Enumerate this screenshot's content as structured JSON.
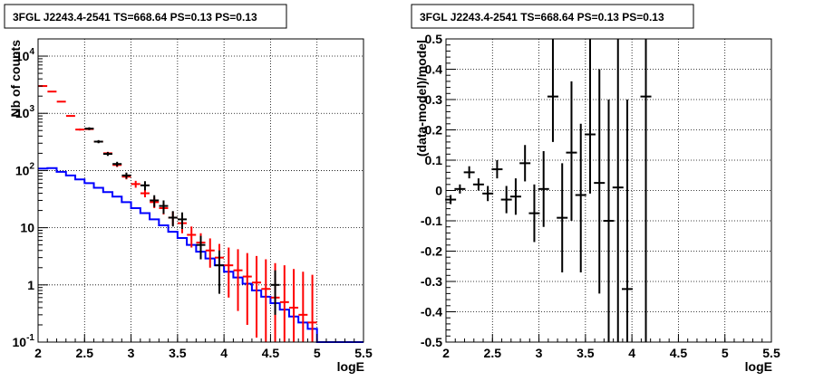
{
  "chart_data": [
    {
      "type": "line",
      "title": "3FGL J2243.4-2541 TS=668.64 PS=0.13 PS=0.13",
      "xlabel": "logE",
      "ylabel": "Nb of counts",
      "xlim": [
        2,
        5.5
      ],
      "ylim": [
        0.1,
        20000
      ],
      "yscale": "log",
      "grid": true,
      "x_ticks": [
        "2",
        "2.5",
        "3",
        "3.5",
        "4",
        "4.5",
        "5",
        "5.5"
      ],
      "y_ticks": [
        "10^-1",
        "1",
        "10",
        "10^2",
        "10^3",
        "10^4"
      ],
      "series": [
        {
          "color": "#0000ff",
          "style": "step",
          "edges": [
            2.0,
            2.1,
            2.2,
            2.3,
            2.4,
            2.5,
            2.6,
            2.7,
            2.8,
            2.9,
            3.0,
            3.1,
            3.2,
            3.3,
            3.4,
            3.5,
            3.6,
            3.7,
            3.8,
            3.9,
            4.0,
            4.1,
            4.2,
            4.3,
            4.4,
            4.5,
            4.6,
            4.7,
            4.8,
            4.9,
            5.0,
            5.1,
            5.2,
            5.3,
            5.4,
            5.5
          ],
          "values": [
            108,
            110,
            95,
            82,
            70,
            60,
            50,
            42,
            35,
            28,
            22,
            18,
            14,
            11,
            8.5,
            6.6,
            5.0,
            3.8,
            2.9,
            2.2,
            1.7,
            1.35,
            1.05,
            0.8,
            0.62,
            0.48,
            0.37,
            0.28,
            0.22,
            0.17,
            0.1,
            0.1,
            0.1,
            0.1,
            0.1
          ]
        },
        {
          "color": "#ff0000",
          "style": "points",
          "x": [
            2.05,
            2.15,
            2.25,
            2.35,
            2.45,
            2.55,
            2.65,
            2.75,
            2.85,
            2.95,
            3.05,
            3.15,
            3.25,
            3.35,
            3.45,
            3.55,
            3.65,
            3.75,
            3.85,
            3.95,
            4.05,
            4.15,
            4.25,
            4.35,
            4.45,
            4.55,
            4.65,
            4.75,
            4.85,
            4.95
          ],
          "y": [
            3000,
            2400,
            1600,
            900,
            520,
            530,
            320,
            200,
            125,
            78,
            58,
            40,
            28,
            22,
            15,
            12,
            7.5,
            5.5,
            4.0,
            3.0,
            2.2,
            1.8,
            1.4,
            1.1,
            0.85,
            0.6,
            0.5,
            0.4,
            0.3,
            0.22
          ],
          "y_low": [
            2950,
            2350,
            1560,
            880,
            500,
            510,
            305,
            188,
            115,
            70,
            50,
            34,
            22,
            17,
            11,
            8,
            4.5,
            3.0,
            2.0,
            1.2,
            0.6,
            0.35,
            0.2,
            0.12,
            0.1,
            0.1,
            0.1,
            0.1,
            0.1,
            0.1
          ],
          "y_high": [
            3050,
            2450,
            1640,
            920,
            540,
            550,
            335,
            212,
            135,
            86,
            66,
            46,
            34,
            27,
            19,
            16,
            10.5,
            8.0,
            6.5,
            5.2,
            4.5,
            4.2,
            3.6,
            3.2,
            2.8,
            2.4,
            2.2,
            1.9,
            1.7,
            1.5
          ]
        },
        {
          "color": "#000000",
          "style": "points",
          "x": [
            2.55,
            2.65,
            2.75,
            2.85,
            2.95,
            3.15,
            3.25,
            3.35,
            3.45,
            3.55,
            3.75,
            3.95,
            4.55
          ],
          "y": [
            540,
            320,
            195,
            130,
            82,
            55,
            30,
            24,
            15,
            14,
            5.0,
            2.2,
            1.0
          ],
          "y_low": [
            510,
            300,
            180,
            118,
            72,
            45,
            23,
            17.5,
            10.5,
            9.5,
            2.8,
            0.7,
            0.3
          ],
          "y_high": [
            570,
            340,
            210,
            142,
            92,
            65,
            37,
            30,
            19.5,
            18.5,
            7.2,
            4.0,
            1.8
          ]
        }
      ]
    },
    {
      "type": "scatter",
      "title": "3FGL J2243.4-2541 TS=668.64 PS=0.13 PS=0.13",
      "xlabel": "logE",
      "ylabel": "(data-model)/model",
      "xlim": [
        2,
        5.5
      ],
      "ylim": [
        -0.5,
        0.5
      ],
      "grid": true,
      "x_ticks": [
        "2",
        "2.5",
        "3",
        "3.5",
        "4",
        "4.5",
        "5",
        "5.5"
      ],
      "y_ticks": [
        "-0.5",
        "-0.4",
        "-0.3",
        "-0.2",
        "-0.1",
        "0",
        "0.1",
        "0.2",
        "0.3",
        "0.4",
        "0.5"
      ],
      "series": [
        {
          "color": "#000000",
          "x": [
            2.05,
            2.15,
            2.25,
            2.35,
            2.45,
            2.55,
            2.65,
            2.75,
            2.85,
            2.95,
            3.05,
            3.15,
            3.25,
            3.35,
            3.45,
            3.55,
            3.65,
            3.75,
            3.85,
            3.95,
            4.15
          ],
          "y": [
            -0.03,
            0.005,
            0.06,
            0.02,
            -0.01,
            0.07,
            -0.03,
            -0.02,
            0.09,
            -0.075,
            0.005,
            0.31,
            -0.09,
            0.125,
            -0.015,
            0.185,
            0.025,
            -0.1,
            0.01,
            -0.325,
            0.31
          ],
          "y_low": [
            -0.045,
            -0.01,
            0.04,
            0.0,
            -0.035,
            0.04,
            -0.075,
            -0.08,
            0.03,
            -0.17,
            -0.12,
            0.16,
            -0.27,
            -0.1,
            -0.27,
            -0.01,
            -0.34,
            -0.5,
            -0.5,
            -0.5,
            -0.5
          ],
          "y_high": [
            -0.015,
            0.02,
            0.08,
            0.04,
            0.015,
            0.1,
            0.015,
            0.04,
            0.15,
            0.02,
            0.13,
            0.5,
            0.09,
            0.36,
            0.22,
            0.5,
            0.4,
            0.3,
            0.5,
            0.3,
            0.5
          ]
        }
      ]
    }
  ]
}
